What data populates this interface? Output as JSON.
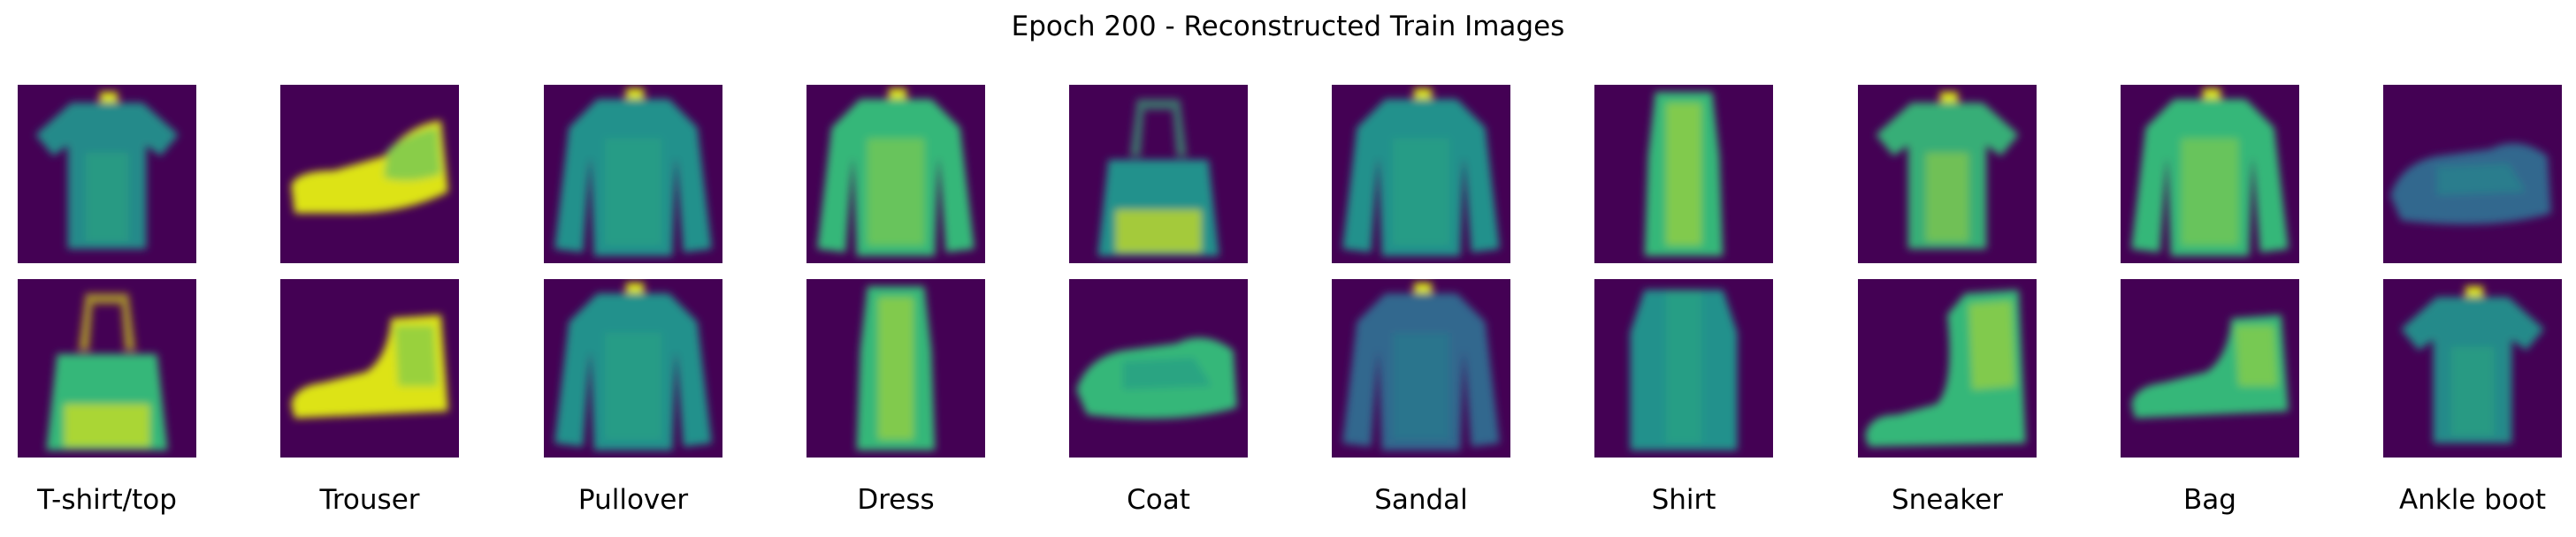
{
  "figure": {
    "title": "Epoch 200 - Reconstructed Train Images",
    "labels": [
      "T-shirt/top",
      "Trouser",
      "Pullover",
      "Dress",
      "Coat",
      "Sandal",
      "Shirt",
      "Sneaker",
      "Bag",
      "Ankle boot"
    ],
    "rows": [
      [
        "tshirt",
        "shoe",
        "pullover",
        "pullover-bright",
        "bag",
        "pullover",
        "dress",
        "tshirt-bright",
        "pullover-bright",
        "sneaker-dim"
      ],
      [
        "bag-bright",
        "boot",
        "pullover",
        "dress",
        "sneaker",
        "pullover-dim",
        "shirt",
        "ankle-boot",
        "boot-bright",
        "tshirt"
      ]
    ],
    "colors": {
      "background": "#440154",
      "dark": "#31688e",
      "mid": "#21918c",
      "light": "#35b779",
      "bright": "#dde318"
    }
  }
}
